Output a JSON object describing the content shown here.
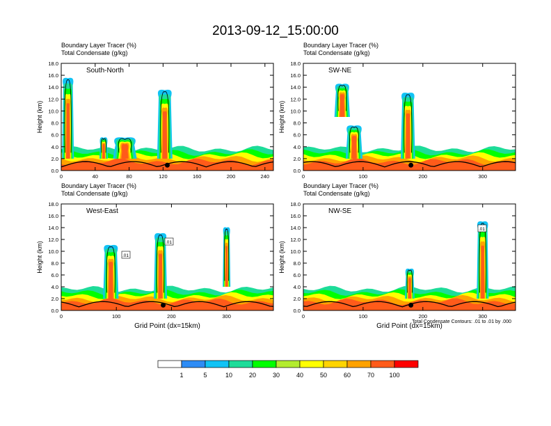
{
  "title": "2013-09-12_15:00:00",
  "colors": {
    "palette": [
      "#ffffff",
      "#2e8cf5",
      "#11c3f5",
      "#1ddc99",
      "#00ff00",
      "#b3ec2f",
      "#ffff00",
      "#ffd400",
      "#ffa200",
      "#ff5b1a",
      "#ff0000"
    ],
    "contour": "#000000",
    "terrain": "#000000"
  },
  "chart_data": [
    {
      "type": "heatmap",
      "panel_label": "South-North",
      "title_lines": [
        "Boundary Layer Tracer   (%)",
        "Total Condensate   (g/kg)"
      ],
      "ylabel": "Height (km)",
      "xlabel": "",
      "xlim": [
        0,
        250
      ],
      "ylim": [
        0,
        18
      ],
      "xticks": [
        0,
        40,
        80,
        120,
        160,
        200,
        240
      ],
      "yticks": [
        0.0,
        2.0,
        4.0,
        6.0,
        8.0,
        10.0,
        12.0,
        14.0,
        16.0,
        18.0
      ],
      "marker_x": 125,
      "plumes": [
        {
          "x": 122,
          "top": 13.5,
          "w": 9,
          "base": 2
        },
        {
          "x": 8,
          "top": 15.5,
          "w": 7,
          "base": 2
        },
        {
          "x": 50,
          "top": 5.5,
          "w": 5,
          "base": 2
        },
        {
          "x": 75,
          "top": 5.5,
          "w": 14,
          "base": 2
        }
      ]
    },
    {
      "type": "heatmap",
      "panel_label": "SW-NE",
      "title_lines": [
        "Boundary Layer Tracer   (%)",
        "Total Condensate   (g/kg)"
      ],
      "ylabel": "Height (km)",
      "xlabel": "",
      "xlim": [
        0,
        355
      ],
      "ylim": [
        0,
        18
      ],
      "xticks": [
        0,
        100,
        200,
        300
      ],
      "yticks": [
        0.0,
        2.0,
        4.0,
        6.0,
        8.0,
        10.0,
        12.0,
        14.0,
        16.0,
        18.0
      ],
      "marker_x": 180,
      "plumes": [
        {
          "x": 175,
          "top": 13.0,
          "w": 12,
          "base": 2
        },
        {
          "x": 65,
          "top": 14.5,
          "w": 13,
          "base": 9
        },
        {
          "x": 85,
          "top": 7.5,
          "w": 14,
          "base": 2
        }
      ]
    },
    {
      "type": "heatmap",
      "panel_label": "West-East",
      "title_lines": [
        "Boundary Layer Tracer   (%)",
        "Total Condensate   (g/kg)"
      ],
      "ylabel": "Height (km)",
      "xlabel": "Grid Point (dx=15km)",
      "xlim": [
        0,
        385
      ],
      "ylim": [
        0,
        18
      ],
      "xticks": [
        0,
        100,
        200,
        300
      ],
      "yticks": [
        0.0,
        2.0,
        4.0,
        6.0,
        8.0,
        10.0,
        12.0,
        14.0,
        16.0,
        18.0
      ],
      "marker_x": 185,
      "contour_labels": [
        ".01",
        ".01"
      ],
      "plumes": [
        {
          "x": 180,
          "top": 13.0,
          "w": 12,
          "base": 2
        },
        {
          "x": 90,
          "top": 11.0,
          "w": 14,
          "base": 2
        },
        {
          "x": 300,
          "top": 14.0,
          "w": 7,
          "base": 4
        }
      ]
    },
    {
      "type": "heatmap",
      "panel_label": "NW-SE",
      "title_lines": [
        "Boundary Layer Tracer   (%)",
        "Total Condensate   (g/kg)"
      ],
      "ylabel": "Height (km)",
      "xlabel": "Grid Point (dx=15km)",
      "xlim": [
        0,
        355
      ],
      "ylim": [
        0,
        18
      ],
      "xticks": [
        0,
        100,
        200,
        300
      ],
      "yticks": [
        0.0,
        2.0,
        4.0,
        6.0,
        8.0,
        10.0,
        12.0,
        14.0,
        16.0,
        18.0
      ],
      "marker_x": 180,
      "contour_labels": [
        ".01"
      ],
      "contour_note": "Total Condensate Contours: .01 to .01 by .000",
      "plumes": [
        {
          "x": 178,
          "top": 7.0,
          "w": 8,
          "base": 2
        },
        {
          "x": 300,
          "top": 15.0,
          "w": 10,
          "base": 2
        }
      ]
    }
  ],
  "colorbar": {
    "labels": [
      "1",
      "5",
      "10",
      "20",
      "30",
      "40",
      "50",
      "60",
      "70",
      "100"
    ]
  }
}
